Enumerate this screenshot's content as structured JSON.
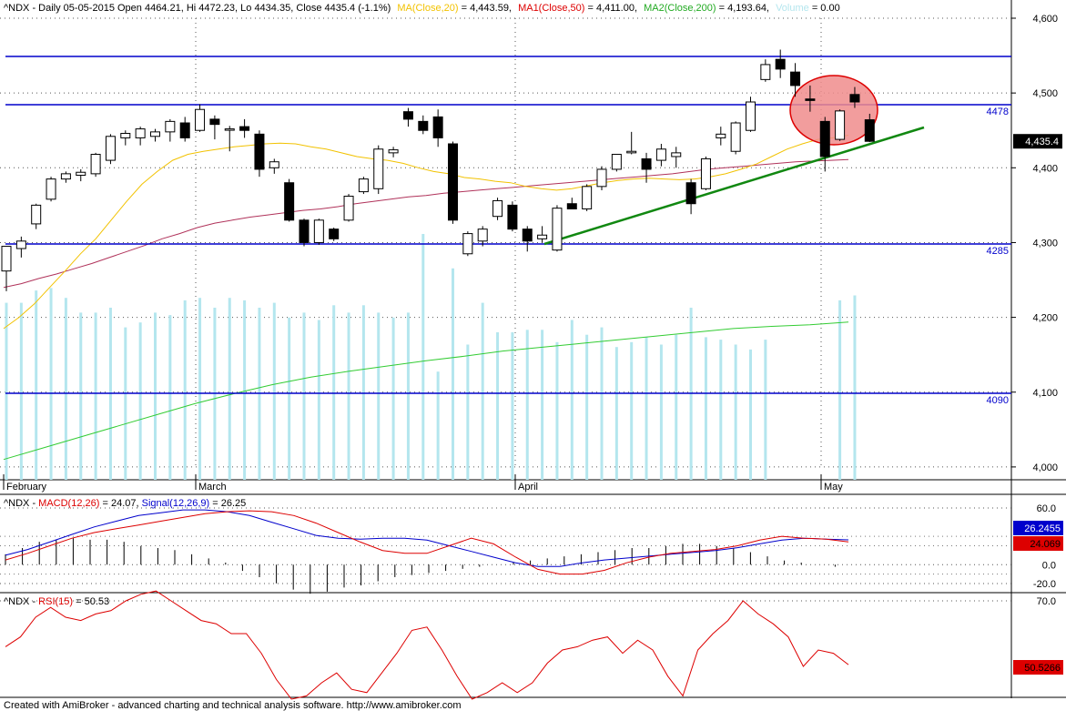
{
  "colors": {
    "up_candle": "#ffffff",
    "down_candle": "#000000",
    "ma20": "#f2c200",
    "ma50": "#b0325a",
    "ma200": "#33cc33",
    "volume": "#b4e6ee",
    "level_line": "#0000cc",
    "trend_line": "#118811",
    "highlight_fill": "#f08c8c",
    "highlight_stroke": "#dd0000",
    "macd": "#dd0000",
    "signal": "#0000cc",
    "rsi": "#dd0000",
    "macd_label_bg": "#0000cc",
    "rsi_label_bg": "#dd0000"
  },
  "header": {
    "symbol": "^NDX - Daily 05-05-2015 Open 4464.21, Hi 4472.23, Lo 4434.35, Close 4435.4 (-1.1%)",
    "ma20_label": "MA(Close,20)",
    "ma20_value": " = 4,443.59,",
    "ma50_label": "MA1(Close,50)",
    "ma50_value": " = 4,411.00,",
    "ma200_label": "MA2(Close,200)",
    "ma200_value": " = 4,193.64,",
    "volume_label": "Volume",
    "volume_value": " = 0.00"
  },
  "macd_header": {
    "prefix": "^NDX - ",
    "macd_label": "MACD(12,26)",
    "macd_value": " = 24.07, ",
    "signal_label": "Signal(12,26,9)",
    "signal_value": " = 26.25"
  },
  "rsi_header": {
    "prefix": "^NDX - ",
    "rsi_label": "RSI(15)",
    "rsi_value": " = 50.53"
  },
  "price_axis": {
    "ticks": [
      "4,600",
      "4,500",
      "4,400",
      "4,300",
      "4,200",
      "4,100",
      "4,000"
    ],
    "current_label": "4,435.4"
  },
  "level_labels": [
    "4478",
    "4285",
    "4090"
  ],
  "month_labels": [
    "February",
    "March",
    "April",
    "May"
  ],
  "macd_axis": {
    "ticks": [
      "60.0",
      "0.0",
      "-20.0"
    ],
    "signal_label": "26.2455",
    "macd_label": "24.069"
  },
  "rsi_axis": {
    "ticks": [
      "70.0"
    ],
    "current_label": "50.5266"
  },
  "footer": "Created with AmiBroker - advanced charting and technical analysis software. http://www.amibroker.com",
  "chart_data": [
    {
      "type": "candlestick",
      "title": "^NDX - Daily 05-05-2015",
      "x_labels": [
        "February",
        "March",
        "April",
        "May"
      ],
      "ylim": [
        3980,
        4640
      ],
      "grid": true,
      "horizontal_levels": [
        4545,
        4478,
        4285,
        4090
      ],
      "candles": [
        {
          "o": 4262,
          "h": 4295,
          "l": 4235,
          "c": 4295
        },
        {
          "o": 4292,
          "h": 4308,
          "l": 4280,
          "c": 4302
        },
        {
          "o": 4325,
          "h": 4352,
          "l": 4318,
          "c": 4350
        },
        {
          "o": 4358,
          "h": 4388,
          "l": 4355,
          "c": 4385
        },
        {
          "o": 4385,
          "h": 4395,
          "l": 4380,
          "c": 4392
        },
        {
          "o": 4390,
          "h": 4398,
          "l": 4382,
          "c": 4394
        },
        {
          "o": 4392,
          "h": 4420,
          "l": 4388,
          "c": 4418
        },
        {
          "o": 4410,
          "h": 4445,
          "l": 4405,
          "c": 4442
        },
        {
          "o": 4440,
          "h": 4450,
          "l": 4430,
          "c": 4446
        },
        {
          "o": 4440,
          "h": 4455,
          "l": 4430,
          "c": 4452
        },
        {
          "o": 4442,
          "h": 4452,
          "l": 4435,
          "c": 4448
        },
        {
          "o": 4448,
          "h": 4465,
          "l": 4435,
          "c": 4462
        },
        {
          "o": 4460,
          "h": 4468,
          "l": 4435,
          "c": 4440
        },
        {
          "o": 4450,
          "h": 4485,
          "l": 4448,
          "c": 4478
        },
        {
          "o": 4465,
          "h": 4470,
          "l": 4438,
          "c": 4458
        },
        {
          "o": 4452,
          "h": 4456,
          "l": 4422,
          "c": 4452
        },
        {
          "o": 4455,
          "h": 4465,
          "l": 4440,
          "c": 4450
        },
        {
          "o": 4445,
          "h": 4450,
          "l": 4388,
          "c": 4398
        },
        {
          "o": 4400,
          "h": 4412,
          "l": 4392,
          "c": 4408
        },
        {
          "o": 4380,
          "h": 4385,
          "l": 4328,
          "c": 4330
        },
        {
          "o": 4330,
          "h": 4332,
          "l": 4295,
          "c": 4300
        },
        {
          "o": 4300,
          "h": 4332,
          "l": 4297,
          "c": 4330
        },
        {
          "o": 4318,
          "h": 4320,
          "l": 4302,
          "c": 4305
        },
        {
          "o": 4330,
          "h": 4365,
          "l": 4328,
          "c": 4362
        },
        {
          "o": 4368,
          "h": 4388,
          "l": 4365,
          "c": 4385
        },
        {
          "o": 4372,
          "h": 4430,
          "l": 4365,
          "c": 4425
        },
        {
          "o": 4420,
          "h": 4428,
          "l": 4414,
          "c": 4424
        },
        {
          "o": 4475,
          "h": 4480,
          "l": 4455,
          "c": 4465
        },
        {
          "o": 4462,
          "h": 4470,
          "l": 4445,
          "c": 4450
        },
        {
          "o": 4468,
          "h": 4478,
          "l": 4428,
          "c": 4440
        },
        {
          "o": 4432,
          "h": 4435,
          "l": 4325,
          "c": 4330
        },
        {
          "o": 4285,
          "h": 4315,
          "l": 4282,
          "c": 4312
        },
        {
          "o": 4302,
          "h": 4322,
          "l": 4295,
          "c": 4318
        },
        {
          "o": 4335,
          "h": 4360,
          "l": 4330,
          "c": 4356
        },
        {
          "o": 4350,
          "h": 4355,
          "l": 4315,
          "c": 4318
        },
        {
          "o": 4318,
          "h": 4322,
          "l": 4288,
          "c": 4302
        },
        {
          "o": 4305,
          "h": 4322,
          "l": 4300,
          "c": 4310
        },
        {
          "o": 4290,
          "h": 4350,
          "l": 4288,
          "c": 4346
        },
        {
          "o": 4352,
          "h": 4360,
          "l": 4345,
          "c": 4345
        },
        {
          "o": 4345,
          "h": 4378,
          "l": 4342,
          "c": 4375
        },
        {
          "o": 4375,
          "h": 4402,
          "l": 4370,
          "c": 4398
        },
        {
          "o": 4398,
          "h": 4418,
          "l": 4395,
          "c": 4418
        },
        {
          "o": 4420,
          "h": 4448,
          "l": 4418,
          "c": 4422
        },
        {
          "o": 4412,
          "h": 4420,
          "l": 4380,
          "c": 4398
        },
        {
          "o": 4410,
          "h": 4432,
          "l": 4402,
          "c": 4425
        },
        {
          "o": 4415,
          "h": 4428,
          "l": 4400,
          "c": 4420
        },
        {
          "o": 4380,
          "h": 4385,
          "l": 4338,
          "c": 4352
        },
        {
          "o": 4372,
          "h": 4415,
          "l": 4370,
          "c": 4412
        },
        {
          "o": 4440,
          "h": 4455,
          "l": 4430,
          "c": 4445
        },
        {
          "o": 4422,
          "h": 4462,
          "l": 4418,
          "c": 4460
        },
        {
          "o": 4450,
          "h": 4495,
          "l": 4448,
          "c": 4488
        },
        {
          "o": 4518,
          "h": 4545,
          "l": 4515,
          "c": 4538
        },
        {
          "o": 4545,
          "h": 4558,
          "l": 4520,
          "c": 4532
        },
        {
          "o": 4528,
          "h": 4540,
          "l": 4495,
          "c": 4510
        },
        {
          "o": 4492,
          "h": 4510,
          "l": 4475,
          "c": 4490
        },
        {
          "o": 4462,
          "h": 4468,
          "l": 4395,
          "c": 4415
        },
        {
          "o": 4438,
          "h": 4478,
          "l": 4436,
          "c": 4476
        },
        {
          "o": 4498,
          "h": 4508,
          "l": 4480,
          "c": 4488
        },
        {
          "o": 4464.21,
          "h": 4472.23,
          "l": 4434.35,
          "c": 4435.4
        }
      ],
      "ma20_recent": 4443.59,
      "ma50_recent": 4411.0,
      "ma200_recent": 4193.64
    },
    {
      "type": "line",
      "title": "^NDX - MACD(12,26), Signal(12,26,9)",
      "ylim": [
        -28,
        72
      ],
      "series": [
        {
          "name": "MACD(12,26)",
          "values": [
            5,
            12,
            20,
            28,
            34,
            38,
            42,
            46,
            50,
            54,
            56,
            57,
            56,
            52,
            44,
            34,
            24,
            15,
            12,
            12,
            20,
            28,
            22,
            8,
            -5,
            -10,
            -10,
            -6,
            2,
            8,
            12,
            14,
            16,
            20,
            26,
            30,
            28,
            27,
            24.07
          ]
        },
        {
          "name": "Signal(12,26,9)",
          "values": [
            10,
            16,
            24,
            32,
            40,
            46,
            52,
            55,
            58,
            58,
            56,
            52,
            45,
            38,
            31,
            28,
            27,
            28,
            28,
            26,
            20,
            14,
            8,
            2,
            -2,
            -2,
            2,
            5,
            7,
            9,
            11,
            13,
            15,
            18,
            22,
            26,
            28,
            27,
            26.25
          ]
        }
      ],
      "histogram": [
        5,
        8,
        11,
        12,
        13,
        12,
        12,
        11,
        9,
        8,
        7,
        5,
        3,
        1,
        -3,
        -6,
        -9,
        -12,
        -14,
        -13,
        -11,
        -10,
        -8,
        -6,
        -5,
        -4,
        -3,
        -2,
        -1,
        0,
        1,
        2,
        3,
        4,
        5,
        6,
        7,
        8,
        8,
        9,
        10,
        10,
        9,
        8,
        6,
        4,
        2,
        1,
        0,
        -1
      ]
    },
    {
      "type": "line",
      "title": "^NDX - RSI(15)",
      "ylim": [
        35,
        75
      ],
      "series": [
        {
          "name": "RSI(15)",
          "values": [
            56,
            59,
            65,
            68,
            65,
            64,
            66,
            67,
            70,
            72,
            73,
            70,
            67,
            64,
            63,
            60,
            60,
            54,
            46,
            40,
            41,
            45,
            48,
            43,
            42,
            48,
            54,
            61,
            62,
            55,
            47,
            40,
            42,
            45,
            42,
            45,
            51,
            55,
            56,
            58,
            59,
            54,
            58,
            55,
            47,
            41,
            55,
            60,
            64,
            70,
            66,
            63,
            59,
            50,
            55,
            54,
            50.53
          ]
        }
      ]
    }
  ]
}
